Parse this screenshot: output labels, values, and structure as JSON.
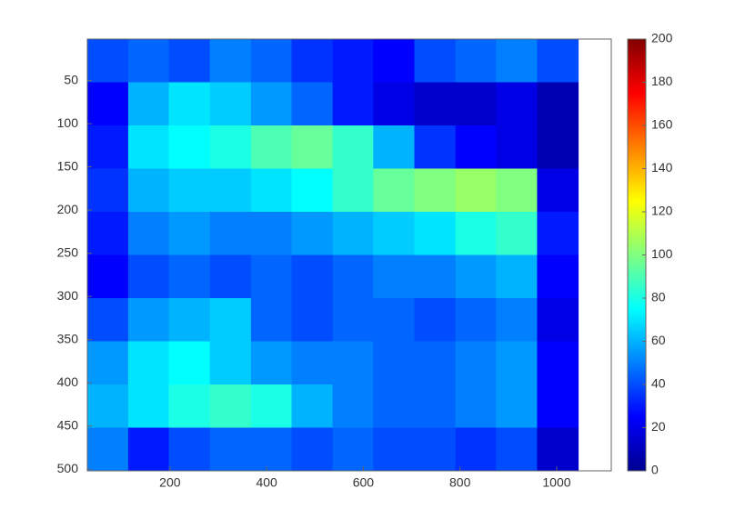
{
  "chart_data": {
    "type": "heatmap",
    "colormap": "jet",
    "x": [
      71,
      156,
      240,
      325,
      410,
      494,
      579,
      663,
      748,
      833,
      917,
      1002
    ],
    "y": [
      27,
      77,
      127,
      177,
      227,
      277,
      327,
      377,
      427,
      477
    ],
    "values": [
      [
        40,
        45,
        40,
        50,
        45,
        35,
        30,
        25,
        40,
        45,
        50,
        40
      ],
      [
        25,
        60,
        70,
        65,
        55,
        45,
        30,
        20,
        15,
        15,
        20,
        10
      ],
      [
        30,
        70,
        75,
        80,
        90,
        95,
        85,
        60,
        35,
        25,
        20,
        10
      ],
      [
        35,
        60,
        65,
        65,
        70,
        75,
        85,
        95,
        100,
        105,
        100,
        20
      ],
      [
        30,
        50,
        55,
        50,
        50,
        55,
        60,
        65,
        70,
        80,
        85,
        30
      ],
      [
        25,
        40,
        45,
        40,
        45,
        40,
        45,
        50,
        50,
        55,
        60,
        25
      ],
      [
        40,
        55,
        60,
        65,
        45,
        40,
        45,
        45,
        40,
        45,
        50,
        20
      ],
      [
        55,
        70,
        75,
        65,
        55,
        50,
        50,
        45,
        45,
        50,
        55,
        25
      ],
      [
        60,
        70,
        80,
        85,
        80,
        60,
        50,
        45,
        45,
        50,
        55,
        25
      ],
      [
        50,
        30,
        40,
        45,
        45,
        40,
        45,
        40,
        40,
        35,
        40,
        15
      ]
    ],
    "xlim": [
      29,
      1113
    ],
    "xticks": [
      200,
      400,
      600,
      800,
      1000
    ],
    "ylim": [
      502,
      2
    ],
    "yticks": [
      50,
      100,
      150,
      200,
      250,
      300,
      350,
      400,
      450,
      500
    ],
    "clim": [
      0,
      200
    ],
    "cticks": [
      0,
      20,
      40,
      60,
      80,
      100,
      120,
      140,
      160,
      180,
      200
    ]
  }
}
